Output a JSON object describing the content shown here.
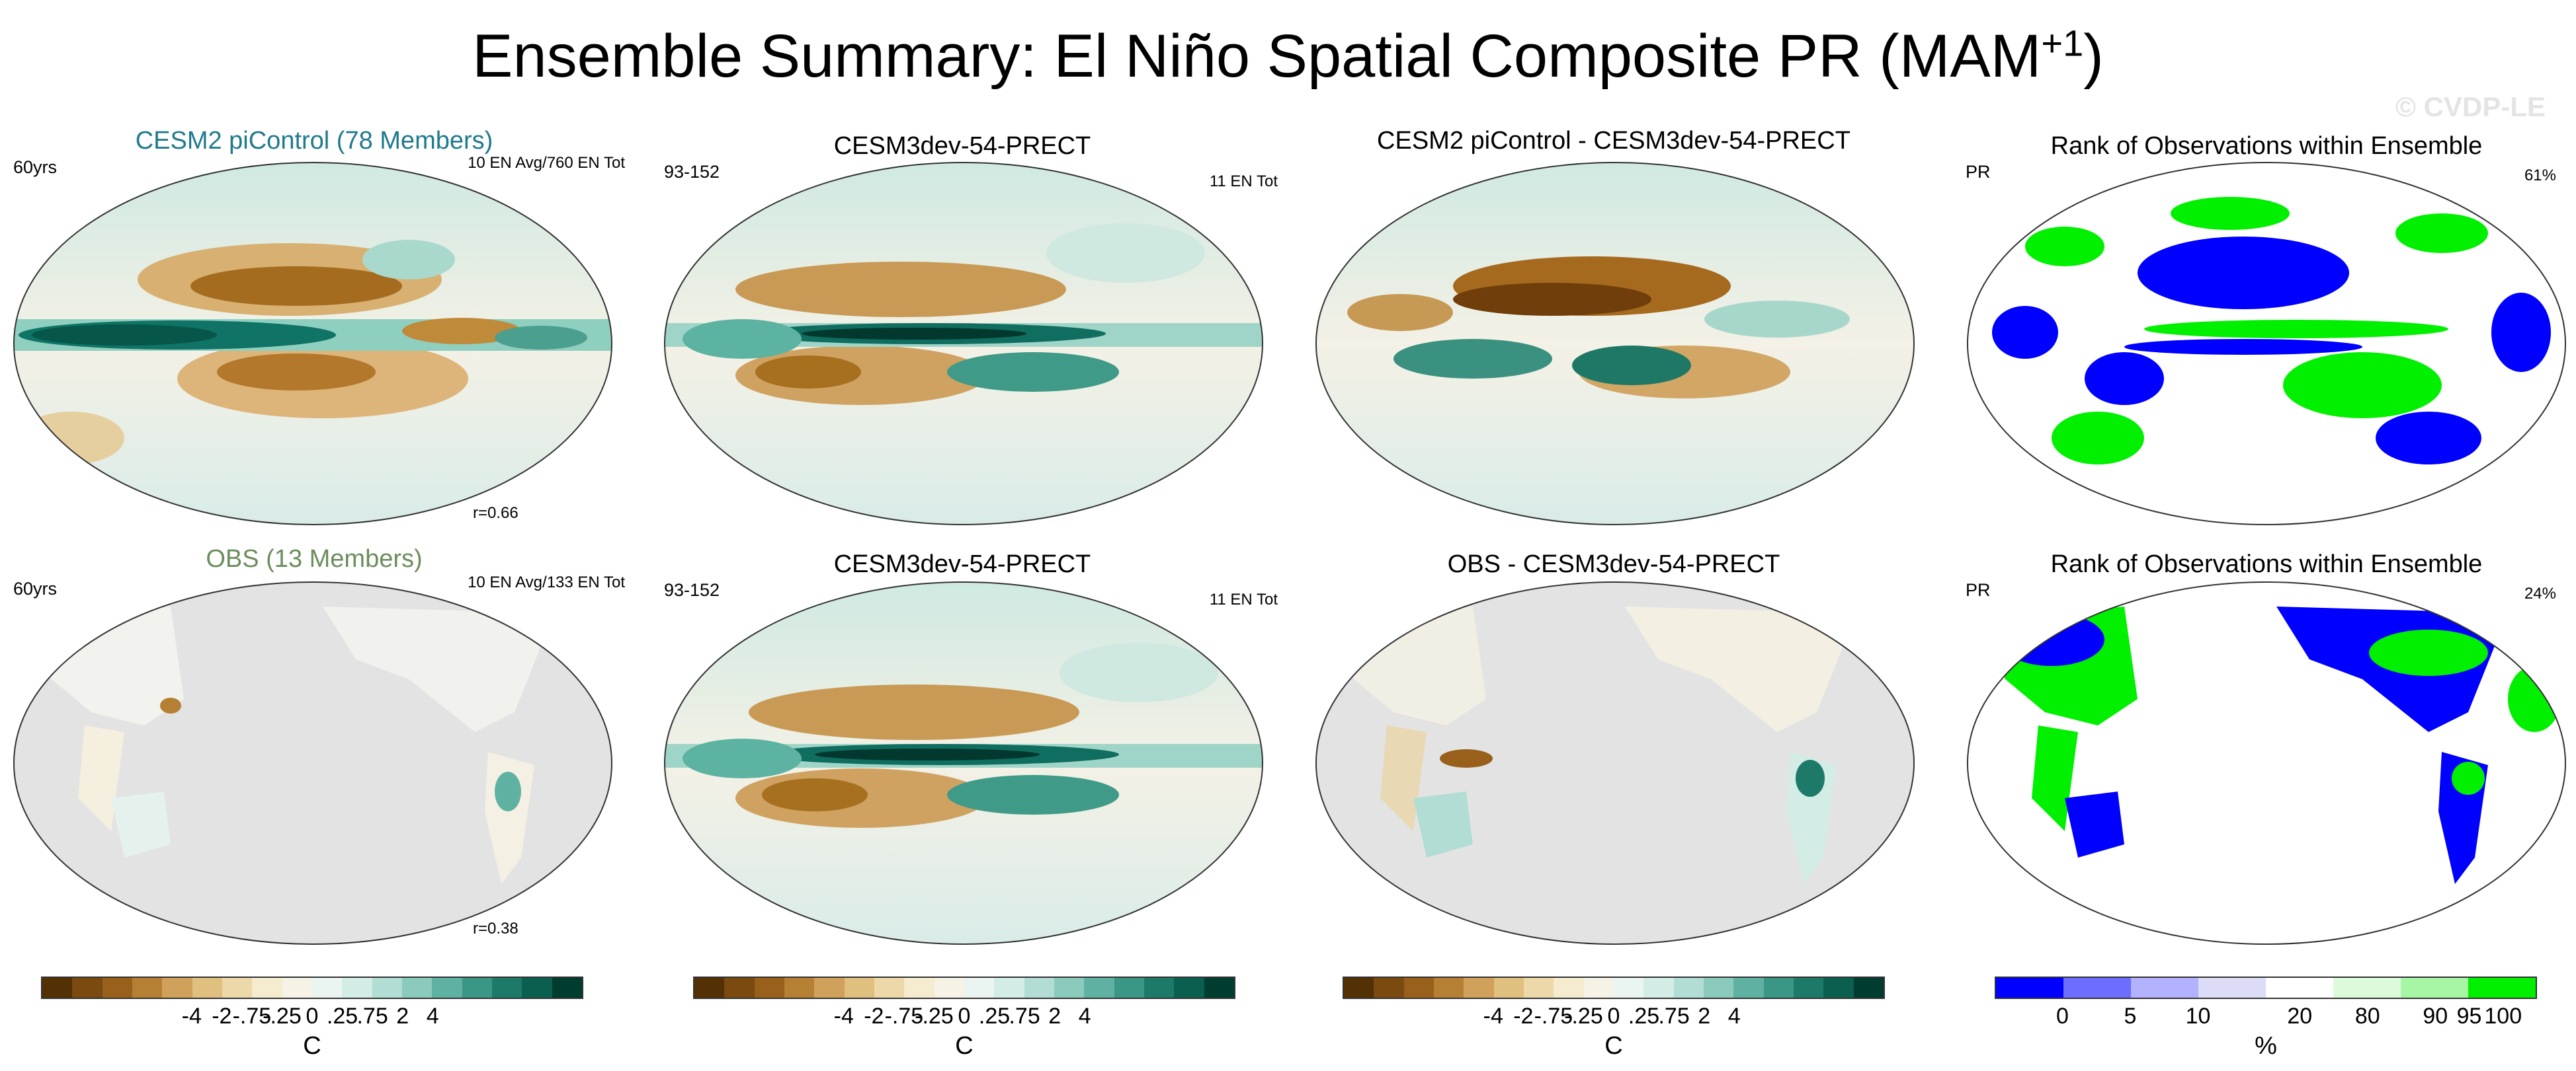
{
  "title": {
    "main": "Ensemble Summary: El Niño Spatial Composite PR (MAM",
    "sup": "+1",
    "close": ")"
  },
  "watermark": "© CVDP-LE",
  "panels": {
    "r1c1": {
      "title": "CESM2 piControl (78 Members)",
      "left": "60yrs",
      "right": "10 EN Avg/760 EN Tot",
      "corr": "r=0.66"
    },
    "r1c2": {
      "title": "CESM3dev-54-PRECT",
      "left": "93-152",
      "right": "11 EN Tot"
    },
    "r1c3": {
      "title": "CESM2 piControl - CESM3dev-54-PRECT"
    },
    "r1c4": {
      "title": "Rank of Observations within Ensemble",
      "left": "PR",
      "right": "61%"
    },
    "r2c1": {
      "title": "OBS (13 Members)",
      "left": "60yrs",
      "right": "10 EN Avg/133 EN Tot",
      "corr": "r=0.38"
    },
    "r2c2": {
      "title": "CESM3dev-54-PRECT",
      "left": "93-152",
      "right": "11 EN Tot"
    },
    "r2c3": {
      "title": "OBS - CESM3dev-54-PRECT"
    },
    "r2c4": {
      "title": "Rank of Observations within Ensemble",
      "left": "PR",
      "right": "24%"
    }
  },
  "colorbars": {
    "precip": {
      "ticks": [
        "-4",
        "-2",
        "-.75",
        "-.25",
        "0",
        ".25",
        ".75",
        "2",
        "4"
      ],
      "unit": "C",
      "colors": [
        "#543005",
        "#7a4a10",
        "#98601a",
        "#b57f34",
        "#cfa15a",
        "#dfc07f",
        "#ecd8a8",
        "#f5ebcf",
        "#f6f2e6",
        "#eaf5f2",
        "#d4ece6",
        "#b2ddd4",
        "#8acbbd",
        "#5fb2a2",
        "#3a9685",
        "#1d7a68",
        "#0b5f4f",
        "#003d30"
      ]
    },
    "rank": {
      "ticks": [
        "0",
        "5",
        "10",
        "20",
        "80",
        "90",
        "95",
        "100"
      ],
      "unit": "%",
      "colors": [
        "#0000ff",
        "#6d6dff",
        "#b2b2ff",
        "#dcdcf6",
        "#ffffff",
        "#dbfbdb",
        "#a6f6a6",
        "#00f000"
      ]
    },
    "rank_legend_colors": {
      "low": "#0000ff",
      "high": "#00f000",
      "mid": "#ffffff"
    }
  }
}
